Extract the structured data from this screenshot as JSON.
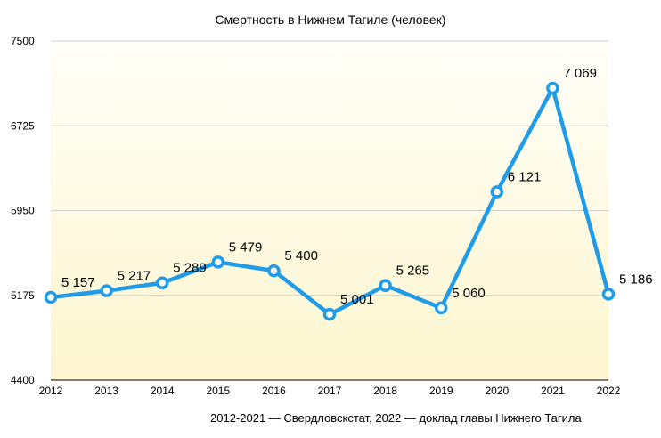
{
  "chart_data": {
    "type": "line",
    "title": "Смертность в Нижнем Тагиле (человек)",
    "xlabel": "",
    "ylabel": "",
    "categories": [
      "2012",
      "2013",
      "2014",
      "2015",
      "2016",
      "2017",
      "2018",
      "2019",
      "2020",
      "2021",
      "2022"
    ],
    "series": [
      {
        "values": [
          5157,
          5217,
          5289,
          5479,
          5400,
          5001,
          5265,
          5060,
          6121,
          7069,
          5186
        ],
        "data_labels": [
          "5 157",
          "5 217",
          "5 289",
          "5 479",
          "5 400",
          "5 001",
          "5 265",
          "5 060",
          "6 121",
          "7 069",
          "5 186"
        ],
        "color": "#1f9be8"
      }
    ],
    "ylim": [
      4400,
      7500
    ],
    "yticks": [
      4400,
      5175,
      5950,
      6725,
      7500
    ],
    "grid": true,
    "background_gradient": [
      "#fffef8",
      "#fdf6cf"
    ],
    "note": "2012-2021 — Свердловскстат, 2022 — доклад главы Нижнего Тагила"
  }
}
